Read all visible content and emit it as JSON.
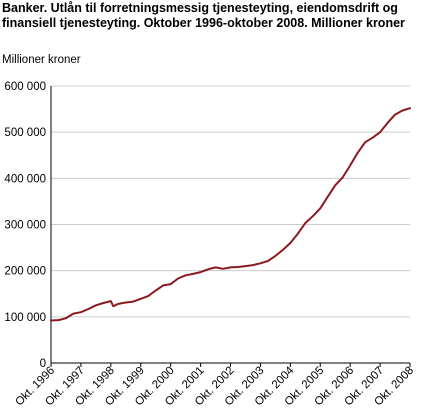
{
  "chart_data": {
    "type": "line",
    "title": "Banker. Utlån til forretningsmessig tjenesteyting, eiendomsdrift og finansiell tjenesteyting. Oktober 1996-oktober 2008. Millioner kroner",
    "ylabel": "Millioner kroner",
    "xlabel": "",
    "ylim": [
      0,
      600000
    ],
    "yticks": [
      "0",
      "100 000",
      "200 000",
      "300 000",
      "400 000",
      "500 000",
      "600 000"
    ],
    "xlim": [
      1996.75,
      2008.75
    ],
    "xticks": [
      "Okt. 1996",
      "Okt. 1997",
      "Okt. 1998",
      "Okt. 1999",
      "Okt. 2000",
      "Okt. 2001",
      "Okt. 2002",
      "Okt. 2003",
      "Okt. 2004",
      "Okt. 2005",
      "Okt. 2006",
      "Okt. 2007",
      "Okt. 2008"
    ],
    "grid": "horizontal",
    "colors": {
      "line": "#8b1a1e",
      "grid": "#cccccc",
      "axis": "#000000"
    },
    "series": [
      {
        "x": [
          "1996-10",
          "1997-01",
          "1997-04",
          "1997-07",
          "1997-10",
          "1998-01",
          "1998-04",
          "1998-07",
          "1998-10",
          "1998-11",
          "1999-01",
          "1999-04",
          "1999-07",
          "1999-10",
          "2000-01",
          "2000-04",
          "2000-07",
          "2000-10",
          "2001-01",
          "2001-04",
          "2001-07",
          "2001-10",
          "2002-01",
          "2002-04",
          "2002-07",
          "2002-10",
          "2003-01",
          "2003-04",
          "2003-07",
          "2003-10",
          "2004-01",
          "2004-04",
          "2004-07",
          "2004-10",
          "2005-01",
          "2005-04",
          "2005-07",
          "2005-10",
          "2006-01",
          "2006-04",
          "2006-07",
          "2006-10",
          "2007-01",
          "2007-04",
          "2007-07",
          "2007-10",
          "2008-01",
          "2008-04",
          "2008-07",
          "2008-10"
        ],
        "values": [
          92000,
          93000,
          97000,
          107000,
          110000,
          117000,
          125000,
          130000,
          134000,
          123000,
          128000,
          131000,
          133000,
          139000,
          145000,
          157000,
          168000,
          171000,
          183000,
          190000,
          193000,
          197000,
          203000,
          207000,
          204000,
          207000,
          208000,
          210000,
          212000,
          216000,
          221000,
          232000,
          245000,
          260000,
          280000,
          303000,
          318000,
          335000,
          360000,
          385000,
          402000,
          428000,
          455000,
          478000,
          488000,
          500000,
          520000,
          538000,
          547000,
          552000
        ]
      }
    ]
  }
}
